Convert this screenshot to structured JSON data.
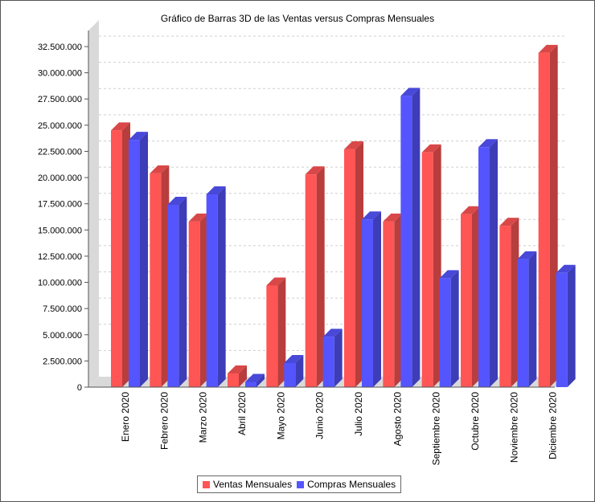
{
  "chart_data": {
    "type": "bar",
    "title": "Gráfico de Barras 3D de las Ventas versus Compras Mensuales",
    "categories": [
      "Enero 2020",
      "Febrero 2020",
      "Marzo 2020",
      "Abril 2020",
      "Mayo 2020",
      "Junio 2020",
      "Julio 2020",
      "Agosto 2020",
      "Septiembre 2020",
      "Octubre 2020",
      "Noviembre 2020",
      "Diciembre 2020"
    ],
    "series": [
      {
        "name": "Ventas Mensuales",
        "color": "#ff5555",
        "values": [
          24500000,
          20400000,
          15800000,
          1300000,
          9700000,
          20300000,
          22700000,
          15800000,
          22400000,
          16500000,
          15400000,
          31900000
        ]
      },
      {
        "name": "Compras Mensuales",
        "color": "#5555ff",
        "values": [
          23600000,
          17400000,
          18400000,
          500000,
          2300000,
          4800000,
          16000000,
          27800000,
          10400000,
          22900000,
          12200000,
          10900000
        ]
      }
    ],
    "ylim": [
      0,
      32500000
    ],
    "yticks": [
      "0",
      "2.500.000",
      "5.000.000",
      "7.500.000",
      "10.000.000",
      "12.500.000",
      "15.000.000",
      "17.500.000",
      "20.000.000",
      "22.500.000",
      "25.000.000",
      "27.500.000",
      "30.000.000",
      "32.500.000"
    ],
    "grid": true,
    "legend_position": "bottom"
  }
}
